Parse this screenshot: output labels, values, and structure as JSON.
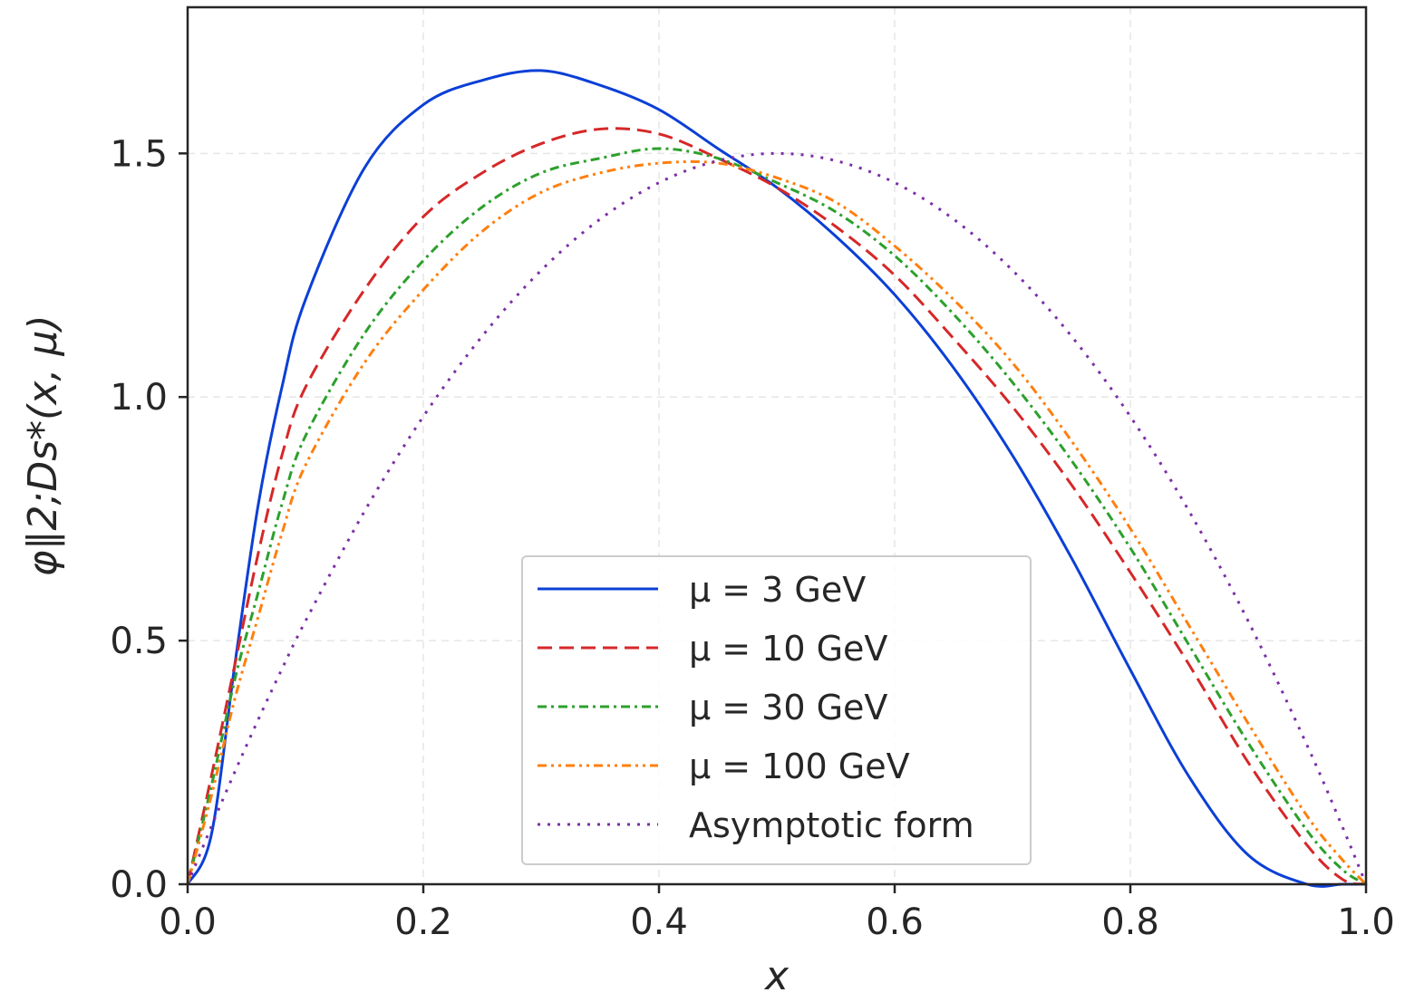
{
  "chart_data": {
    "type": "line",
    "title": "",
    "xlabel": "x",
    "ylabel": "φ∥2;Ds*(x, μ)",
    "xlim": [
      0.0,
      1.0
    ],
    "ylim": [
      0.0,
      1.8
    ],
    "xticks": [
      "0.0",
      "0.2",
      "0.4",
      "0.6",
      "0.8",
      "1.0"
    ],
    "xtick_values": [
      0.0,
      0.2,
      0.4,
      0.6,
      0.8,
      1.0
    ],
    "yticks": [
      "0.0",
      "0.5",
      "1.0",
      "1.5"
    ],
    "ytick_values": [
      0.0,
      0.5,
      1.0,
      1.5
    ],
    "grid": true,
    "legend_position": "lower-center",
    "x": [
      0.0,
      0.02,
      0.04,
      0.06,
      0.08,
      0.1,
      0.15,
      0.2,
      0.25,
      0.3,
      0.35,
      0.4,
      0.45,
      0.5,
      0.55,
      0.6,
      0.65,
      0.7,
      0.75,
      0.8,
      0.85,
      0.9,
      0.95,
      0.98,
      1.0
    ],
    "series": [
      {
        "name": "μ = 3 GeV",
        "color": "#0b3fd6",
        "dash": "solid",
        "values": [
          0.0,
          0.1,
          0.45,
          0.78,
          1.02,
          1.2,
          1.47,
          1.6,
          1.65,
          1.67,
          1.64,
          1.59,
          1.51,
          1.43,
          1.33,
          1.21,
          1.06,
          0.88,
          0.67,
          0.44,
          0.22,
          0.06,
          0.0,
          0.0,
          0.0
        ]
      },
      {
        "name": "μ = 10 GeV",
        "color": "#d62728",
        "dash": "dashed",
        "values": [
          0.0,
          0.22,
          0.45,
          0.68,
          0.88,
          1.02,
          1.22,
          1.37,
          1.46,
          1.52,
          1.55,
          1.54,
          1.49,
          1.43,
          1.35,
          1.25,
          1.12,
          0.98,
          0.82,
          0.64,
          0.45,
          0.25,
          0.08,
          0.01,
          0.0
        ]
      },
      {
        "name": "μ = 30 GeV",
        "color": "#2ca02c",
        "dash": "dashdot",
        "values": [
          0.0,
          0.2,
          0.42,
          0.6,
          0.78,
          0.92,
          1.13,
          1.28,
          1.39,
          1.46,
          1.49,
          1.51,
          1.49,
          1.44,
          1.38,
          1.29,
          1.17,
          1.03,
          0.87,
          0.69,
          0.49,
          0.29,
          0.11,
          0.03,
          0.0
        ]
      },
      {
        "name": "μ = 100 GeV",
        "color": "#ff7f0e",
        "dash": "dashdotdot",
        "values": [
          0.0,
          0.18,
          0.38,
          0.55,
          0.72,
          0.86,
          1.07,
          1.22,
          1.34,
          1.42,
          1.46,
          1.48,
          1.48,
          1.45,
          1.4,
          1.31,
          1.2,
          1.07,
          0.91,
          0.73,
          0.53,
          0.33,
          0.14,
          0.05,
          0.0
        ]
      },
      {
        "name": "Asymptotic form",
        "color": "#7b2fa6",
        "dash": "dotted",
        "values": [
          0.0,
          0.1176,
          0.2304,
          0.3384,
          0.4416,
          0.54,
          0.765,
          0.96,
          1.125,
          1.26,
          1.365,
          1.44,
          1.485,
          1.5,
          1.485,
          1.44,
          1.365,
          1.26,
          1.125,
          0.96,
          0.765,
          0.54,
          0.285,
          0.1176,
          0.0
        ]
      }
    ]
  }
}
